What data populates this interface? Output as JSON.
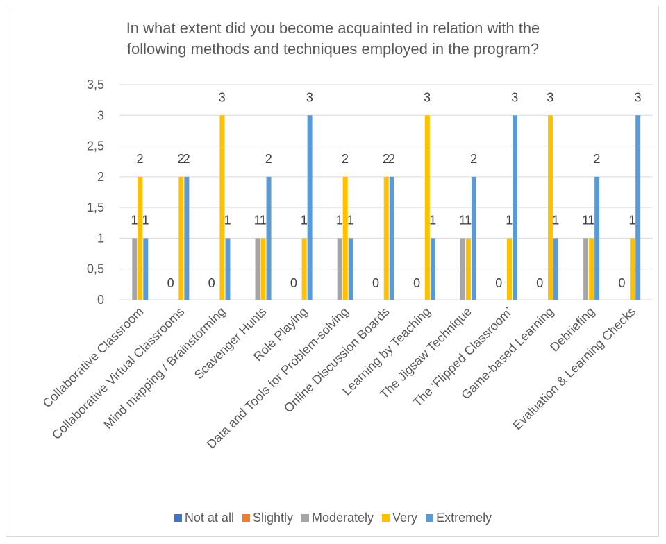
{
  "chart_data": {
    "type": "bar",
    "title_lines": [
      "In what extent did you become acquainted in relation with the",
      "following methods and techniques employed in the program?"
    ],
    "categories": [
      "Collaborative Classroom",
      "Collaborative Virtual Classrooms",
      "Mind mapping / Brainstorming",
      "Scavenger Hunts",
      "Role Playing",
      "Data and Tools for Problem-solving",
      "Online Discussion Boards",
      "Learning by Teaching",
      "The Jigsaw Technique",
      "The ‘Flipped Classroom’",
      "Game-based Learning",
      "Debriefing",
      "Evaluation & Learning Checks"
    ],
    "series": [
      {
        "name": "Not at all",
        "color": "#4472c4",
        "values": [
          null,
          null,
          null,
          null,
          null,
          null,
          null,
          null,
          null,
          null,
          null,
          null,
          null
        ]
      },
      {
        "name": "Slightly",
        "color": "#ed7d31",
        "values": [
          null,
          null,
          null,
          null,
          null,
          null,
          null,
          null,
          null,
          null,
          null,
          null,
          null
        ]
      },
      {
        "name": "Moderately",
        "color": "#a5a5a5",
        "values": [
          1,
          0,
          0,
          1,
          0,
          1,
          0,
          0,
          1,
          0,
          0,
          1,
          0
        ]
      },
      {
        "name": "Very",
        "color": "#ffc000",
        "values": [
          2,
          2,
          3,
          1,
          1,
          2,
          2,
          3,
          1,
          1,
          3,
          1,
          1
        ]
      },
      {
        "name": "Extremely",
        "color": "#5b9bd5",
        "values": [
          1,
          2,
          1,
          2,
          3,
          1,
          2,
          1,
          2,
          3,
          1,
          2,
          3
        ]
      }
    ],
    "value_labels": {
      "Moderately": [
        "1",
        "0",
        "0",
        "1",
        "0",
        "1",
        "0",
        "0",
        "1",
        "0",
        "0",
        "1",
        "0"
      ],
      "Very": [
        "2",
        "2",
        "3",
        "1",
        "1",
        "2",
        "2",
        "3",
        "1",
        "1",
        "3",
        "1",
        "1"
      ],
      "Extremely": [
        "1",
        "2",
        "1",
        "2",
        "3",
        "1",
        "2",
        "1",
        "2",
        "3",
        "1",
        "2",
        "3"
      ]
    },
    "y_ticks": [
      "0",
      "0,5",
      "1",
      "1,5",
      "2",
      "2,5",
      "3",
      "3,5"
    ],
    "y_tick_values": [
      0,
      0.5,
      1,
      1.5,
      2,
      2.5,
      3,
      3.5
    ],
    "ylim": [
      0,
      3.5
    ],
    "grid": true,
    "legend_position": "bottom"
  }
}
